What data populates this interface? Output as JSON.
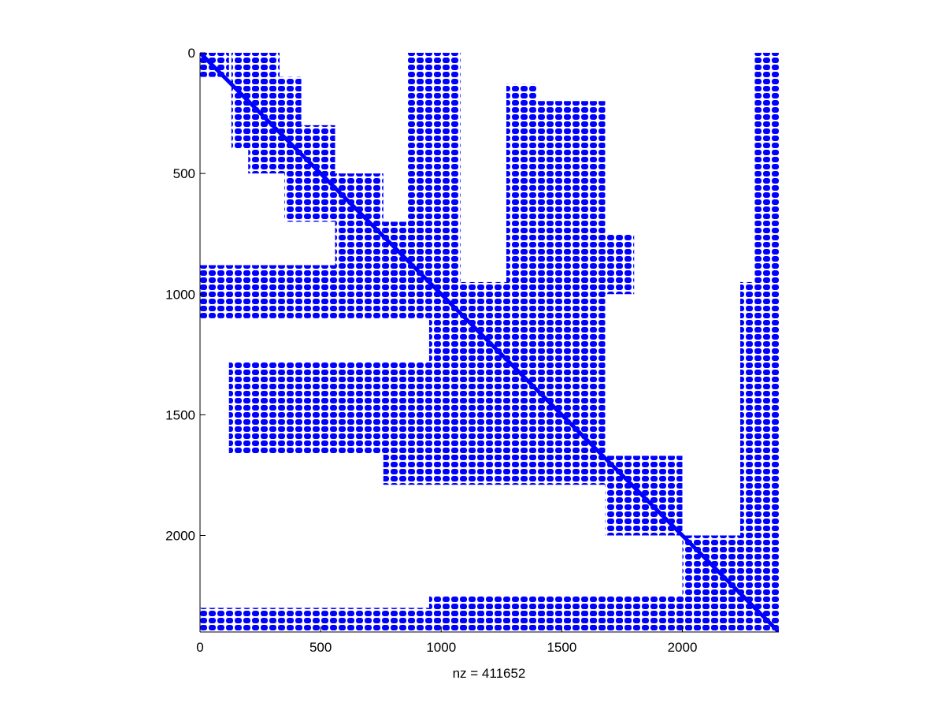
{
  "chart_data": {
    "type": "scatter",
    "title": "",
    "xlabel": "nz = 411652",
    "ylabel": "",
    "xlim": [
      0,
      2400
    ],
    "ylim": [
      0,
      2400
    ],
    "y_reversed": true,
    "grid": false,
    "legend": null,
    "marker_color": "#0000ff",
    "x_ticks": [
      0,
      500,
      1000,
      1500,
      2000
    ],
    "y_ticks": [
      0,
      500,
      1000,
      1500,
      2000
    ],
    "x_tick_labels": [
      "0",
      "500",
      "1000",
      "1500",
      "2000"
    ],
    "y_tick_labels": [
      "0",
      "500",
      "1000",
      "1500",
      "2000"
    ],
    "nnz": 411652,
    "nonzero_blocks": [
      {
        "rows": [
          0,
          100
        ],
        "cols": [
          0,
          120
        ]
      },
      {
        "rows": [
          0,
          400
        ],
        "cols": [
          130,
          330
        ]
      },
      {
        "rows": [
          100,
          500
        ],
        "cols": [
          200,
          420
        ]
      },
      {
        "rows": [
          300,
          700
        ],
        "cols": [
          350,
          560
        ]
      },
      {
        "rows": [
          500,
          880
        ],
        "cols": [
          560,
          760
        ]
      },
      {
        "rows": [
          700,
          950
        ],
        "cols": [
          760,
          950
        ]
      },
      {
        "rows": [
          0,
          1000
        ],
        "cols": [
          860,
          1080
        ]
      },
      {
        "rows": [
          130,
          970
        ],
        "cols": [
          1270,
          1400
        ]
      },
      {
        "rows": [
          200,
          970
        ],
        "cols": [
          1400,
          1680
        ]
      },
      {
        "rows": [
          750,
          1000
        ],
        "cols": [
          1680,
          1800
        ]
      },
      {
        "rows": [
          880,
          1100
        ],
        "cols": [
          0,
          950
        ]
      },
      {
        "rows": [
          950,
          1680
        ],
        "cols": [
          950,
          1680
        ]
      },
      {
        "rows": [
          1280,
          1660
        ],
        "cols": [
          120,
          950
        ]
      },
      {
        "rows": [
          1660,
          1790
        ],
        "cols": [
          760,
          1680
        ]
      },
      {
        "rows": [
          1670,
          2000
        ],
        "cols": [
          1680,
          2000
        ]
      },
      {
        "rows": [
          2000,
          2400
        ],
        "cols": [
          2000,
          2240
        ]
      },
      {
        "rows": [
          0,
          2400
        ],
        "cols": [
          2300,
          2400
        ]
      },
      {
        "rows": [
          950,
          2400
        ],
        "cols": [
          2240,
          2300
        ]
      },
      {
        "rows": [
          2300,
          2400
        ],
        "cols": [
          0,
          1800
        ]
      },
      {
        "rows": [
          2250,
          2400
        ],
        "cols": [
          950,
          2240
        ]
      }
    ]
  }
}
